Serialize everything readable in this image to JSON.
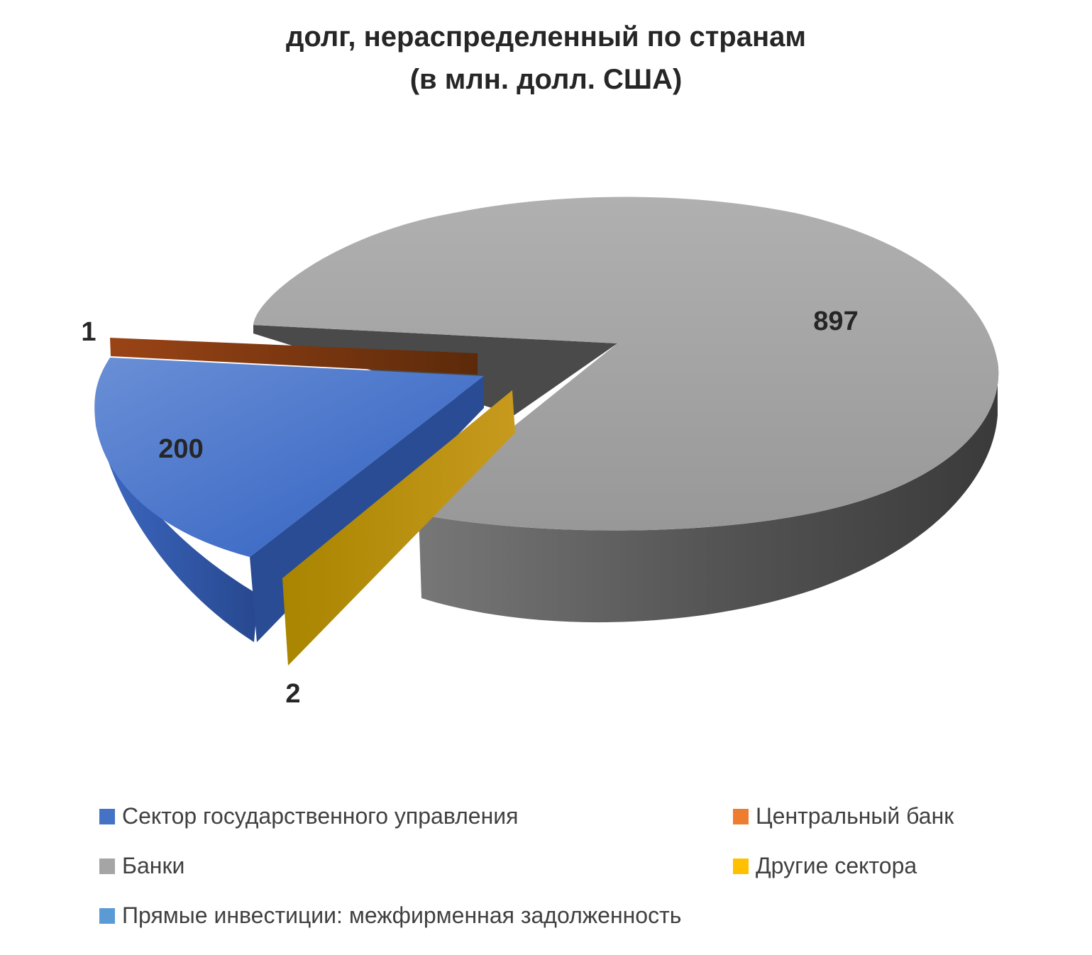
{
  "chart_data": {
    "type": "pie",
    "title": "долг, нераспределенный по странам",
    "subtitle": "(в млн. долл. США)",
    "legend_position": "bottom",
    "categories": [
      "Сектор государственного управления",
      "Центральный банк",
      "Банки",
      "Другие сектора",
      "Прямые инвестиции: межфирменная задолженность"
    ],
    "values": [
      200,
      1,
      897,
      2,
      0
    ],
    "data_labels": [
      "200",
      "1",
      "897",
      "2",
      ""
    ],
    "colors": [
      "#4472C4",
      "#ED7D31",
      "#A5A5A5",
      "#FFC000",
      "#5B9BD5"
    ]
  }
}
